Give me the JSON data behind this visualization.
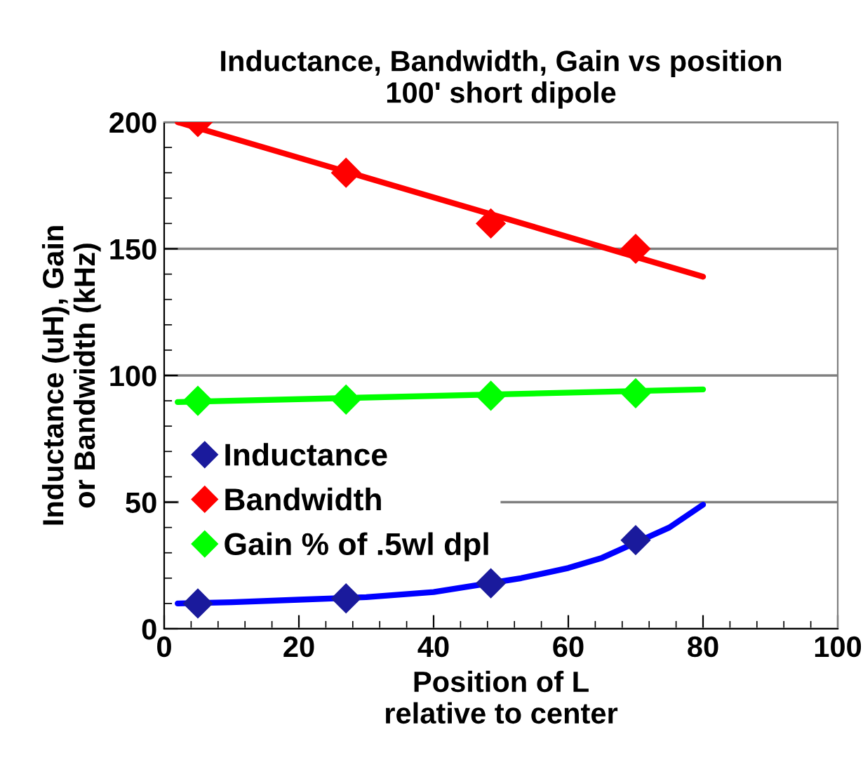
{
  "chart_data": {
    "type": "scatter",
    "title": "Inductance, Bandwidth, Gain vs position\n100' short dipole",
    "xlabel": "Position of L\nrelative to center",
    "ylabel": "Inductance (uH), Gain\nor Bandwidth (kHz)",
    "x": [
      5,
      27,
      48.5,
      70
    ],
    "series": [
      {
        "name": "Inductance",
        "color": "#1a1a9c",
        "values": [
          10,
          12,
          18,
          35
        ]
      },
      {
        "name": "Bandwidth",
        "color": "#ff0000",
        "values": [
          200,
          180,
          160,
          150
        ]
      },
      {
        "name": "Gain % of .5wl dpl",
        "color": "#00ff00",
        "values": [
          90,
          90.5,
          92,
          93
        ]
      },
      {
        "type": "line",
        "color": "#ff0000",
        "marker": "none",
        "x": [
          2,
          80
        ],
        "values": [
          200,
          139
        ]
      },
      {
        "type": "line",
        "color": "#00ff00",
        "marker": "none",
        "x": [
          2,
          80
        ],
        "values": [
          89.5,
          94.5
        ]
      },
      {
        "type": "line",
        "color": "#0000ff",
        "marker": "none",
        "x": [
          2,
          10,
          20,
          30,
          40,
          53,
          60,
          65,
          75,
          80
        ],
        "values": [
          10,
          10.5,
          11.5,
          12.5,
          14.5,
          20,
          24,
          28,
          40,
          49
        ]
      }
    ],
    "marker": "diamond",
    "xlim": [
      0,
      100
    ],
    "xticks": [
      0,
      20,
      40,
      60,
      80,
      100
    ],
    "ylim": [
      0,
      200
    ],
    "yticks": [
      0,
      50,
      100,
      150,
      200
    ],
    "grid": "y",
    "legend": "left"
  }
}
